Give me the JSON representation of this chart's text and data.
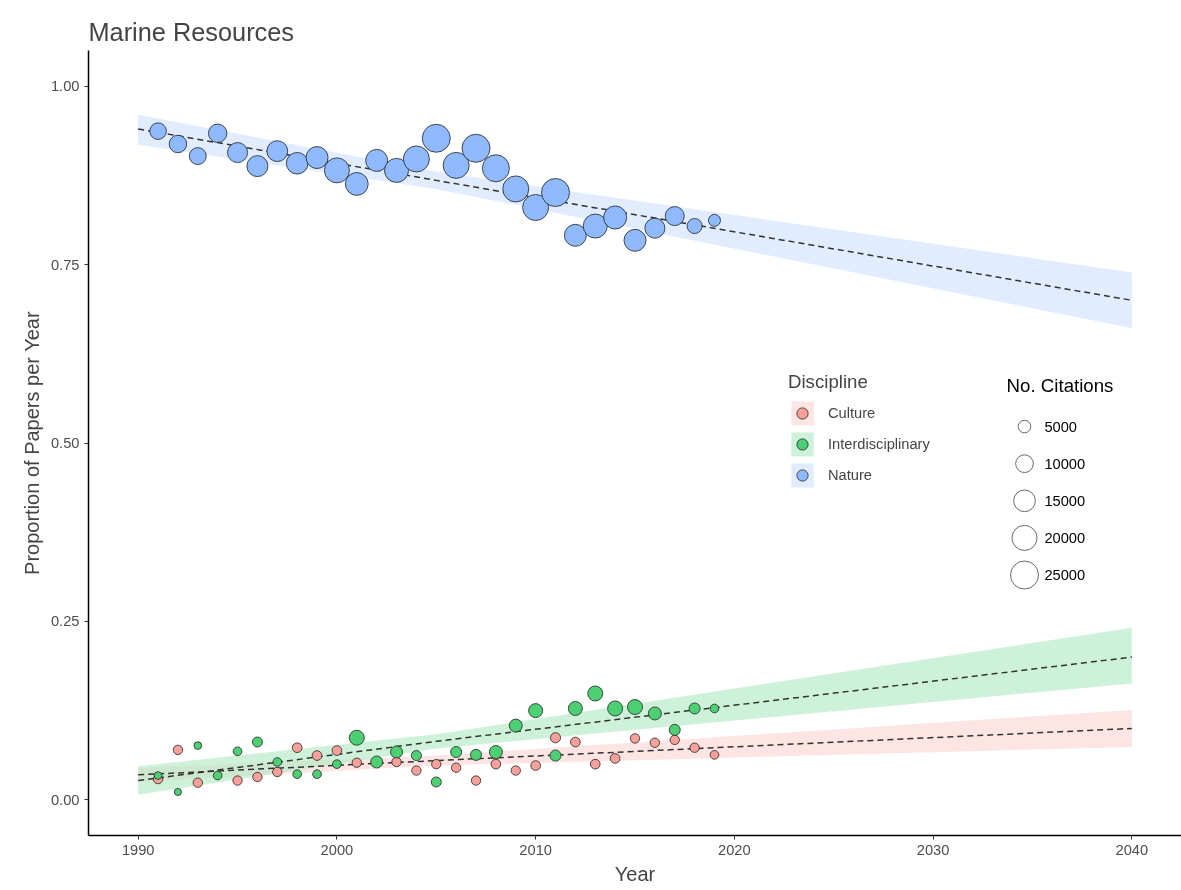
{
  "chart_data": {
    "type": "bubble",
    "title": "Marine Resources",
    "xlabel": "Year",
    "ylabel": "Proportion of Papers per Year",
    "legend_title": "Discipline",
    "legend": "right",
    "grid": false,
    "marker": "circle",
    "xlim": [
      1987.5,
      2042.5
    ],
    "ylim": [
      -0.05,
      1.05
    ],
    "xticks": [
      1990,
      2000,
      2010,
      2020,
      2030,
      2040
    ],
    "yticks": [
      {
        "value": 0,
        "label": "0.00"
      },
      {
        "value": 0.25,
        "label": "0.25"
      },
      {
        "value": 0.5,
        "label": "0.50"
      },
      {
        "value": 0.75,
        "label": "0.75"
      },
      {
        "value": 1,
        "label": "1.00"
      }
    ],
    "size_legend": [
      5000,
      10000,
      15000,
      20000,
      25000
    ],
    "annotations": [
      "No. Citations"
    ],
    "x": [
      1991,
      1992,
      1993,
      1994,
      1995,
      1996,
      1997,
      1998,
      1999,
      2000,
      2001,
      2002,
      2003,
      2004,
      2005,
      2006,
      2007,
      2008,
      2009,
      2010,
      2011,
      2012,
      2013,
      2014,
      2015,
      2016,
      2017,
      2018,
      2019
    ],
    "series": [
      {
        "name": "Culture",
        "color": "#f9a09a",
        "values": [
          0.029,
          0.07,
          0.024,
          null,
          0.027,
          0.032,
          0.039,
          0.073,
          0.062,
          0.069,
          0.052,
          null,
          0.053,
          0.041,
          0.05,
          0.045,
          0.027,
          0.05,
          0.041,
          0.048,
          0.087,
          0.081,
          0.05,
          0.058,
          0.086,
          0.08,
          0.084,
          0.073,
          0.063
        ],
        "sizes": [
          2800,
          2800,
          2800,
          null,
          2800,
          2800,
          2800,
          3000,
          3000,
          3000,
          2800,
          null,
          2800,
          2800,
          2800,
          2800,
          2800,
          3000,
          2800,
          3000,
          3300,
          3000,
          3000,
          3000,
          2800,
          2800,
          2800,
          2800,
          2400
        ]
      },
      {
        "name": "Interdisciplinary",
        "color": "#4dcf74",
        "values": [
          0.034,
          0.011,
          0.076,
          0.034,
          0.068,
          0.081,
          0.053,
          0.036,
          0.036,
          0.05,
          0.087,
          0.053,
          0.067,
          0.062,
          0.025,
          0.067,
          0.063,
          0.067,
          0.104,
          0.125,
          0.062,
          0.128,
          0.149,
          0.128,
          0.13,
          0.121,
          0.098,
          0.128,
          0.128
        ],
        "sizes": [
          1900,
          1600,
          1900,
          2400,
          2400,
          3200,
          2400,
          2400,
          2400,
          2400,
          7200,
          4600,
          4600,
          3200,
          3200,
          3900,
          3900,
          5400,
          5400,
          6300,
          3900,
          6300,
          7200,
          7200,
          7200,
          5400,
          3900,
          3900,
          2400
        ]
      },
      {
        "name": "Nature",
        "color": "#90baff",
        "values": [
          0.937,
          0.919,
          0.902,
          0.934,
          0.907,
          0.888,
          0.909,
          0.892,
          0.9,
          0.882,
          0.863,
          0.896,
          0.882,
          0.898,
          0.927,
          0.889,
          0.913,
          0.885,
          0.856,
          0.83,
          0.851,
          0.791,
          0.804,
          0.816,
          0.784,
          0.801,
          0.818,
          0.804,
          0.812
        ],
        "sizes": [
          8800,
          9700,
          9200,
          10800,
          12800,
          14100,
          13800,
          14900,
          15400,
          19900,
          16600,
          15400,
          18400,
          21600,
          25000,
          21600,
          25000,
          23300,
          21600,
          21600,
          25000,
          15400,
          18400,
          16900,
          15400,
          12800,
          11500,
          7200,
          4600
        ]
      },
      {
        "type": "line",
        "color": "#333333",
        "line_style": "dashed",
        "marker": "none",
        "x": [
          1990,
          2005,
          2040
        ],
        "values": [
          0.035,
          0.055,
          0.1
        ],
        "lower": [
          0.025,
          0.048,
          0.074
        ],
        "upper": [
          0.045,
          0.062,
          0.126
        ]
      },
      {
        "type": "line",
        "color": "#333333",
        "line_style": "dashed",
        "marker": "none",
        "x": [
          1990,
          2005,
          2040
        ],
        "values": [
          0.027,
          0.082,
          0.2
        ],
        "lower": [
          0.007,
          0.072,
          0.163
        ],
        "upper": [
          0.047,
          0.092,
          0.241
        ]
      },
      {
        "type": "line",
        "color": "#333333",
        "line_style": "dashed",
        "marker": "none",
        "x": [
          1990,
          2005,
          2040
        ],
        "values": [
          0.94,
          0.868,
          0.7
        ],
        "lower": [
          0.918,
          0.856,
          0.661
        ],
        "upper": [
          0.96,
          0.88,
          0.739
        ]
      }
    ]
  }
}
